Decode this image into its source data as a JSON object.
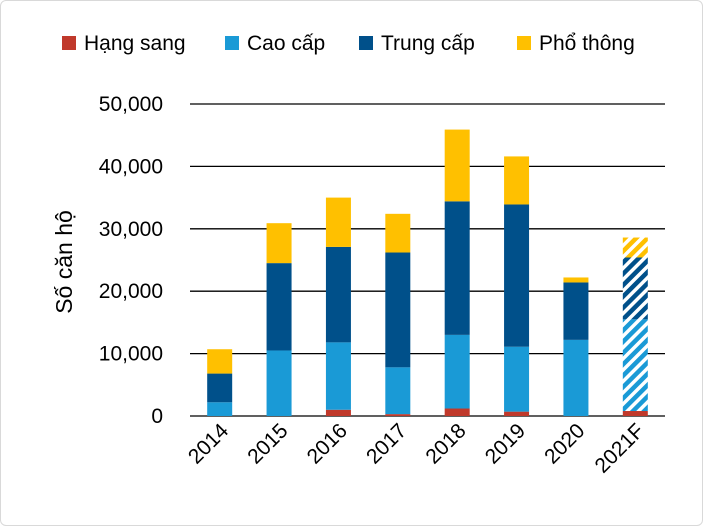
{
  "chart_data": {
    "type": "bar",
    "stacked": true,
    "title": "",
    "xlabel": "",
    "ylabel": "Số căn hộ",
    "ylim": [
      0,
      50000
    ],
    "yticks": [
      0,
      10000,
      20000,
      30000,
      40000,
      50000
    ],
    "ytick_labels": [
      "0",
      "10,000",
      "20,000",
      "30,000",
      "40,000",
      "50,000"
    ],
    "grid": "horizontal",
    "legend_position": "top",
    "categories": [
      "2014",
      "2015",
      "2016",
      "2017",
      "2018",
      "2019",
      "2020",
      "2021F"
    ],
    "forecast_categories": [
      "2021F"
    ],
    "series": [
      {
        "name": "Hạng sang",
        "color": "#c0392b",
        "values": [
          0,
          0,
          1000,
          300,
          1200,
          700,
          0,
          800
        ]
      },
      {
        "name": "Cao cấp",
        "color": "#1a9ad6",
        "values": [
          2200,
          10500,
          10800,
          7500,
          11800,
          10400,
          12200,
          14700
        ]
      },
      {
        "name": "Trung cấp",
        "color": "#00508a",
        "values": [
          4600,
          14000,
          15300,
          18400,
          21400,
          22800,
          9200,
          9900
        ]
      },
      {
        "name": "Phổ thông",
        "color": "#ffc000",
        "values": [
          3900,
          6400,
          7900,
          6200,
          11500,
          7700,
          800,
          3200
        ]
      }
    ]
  }
}
